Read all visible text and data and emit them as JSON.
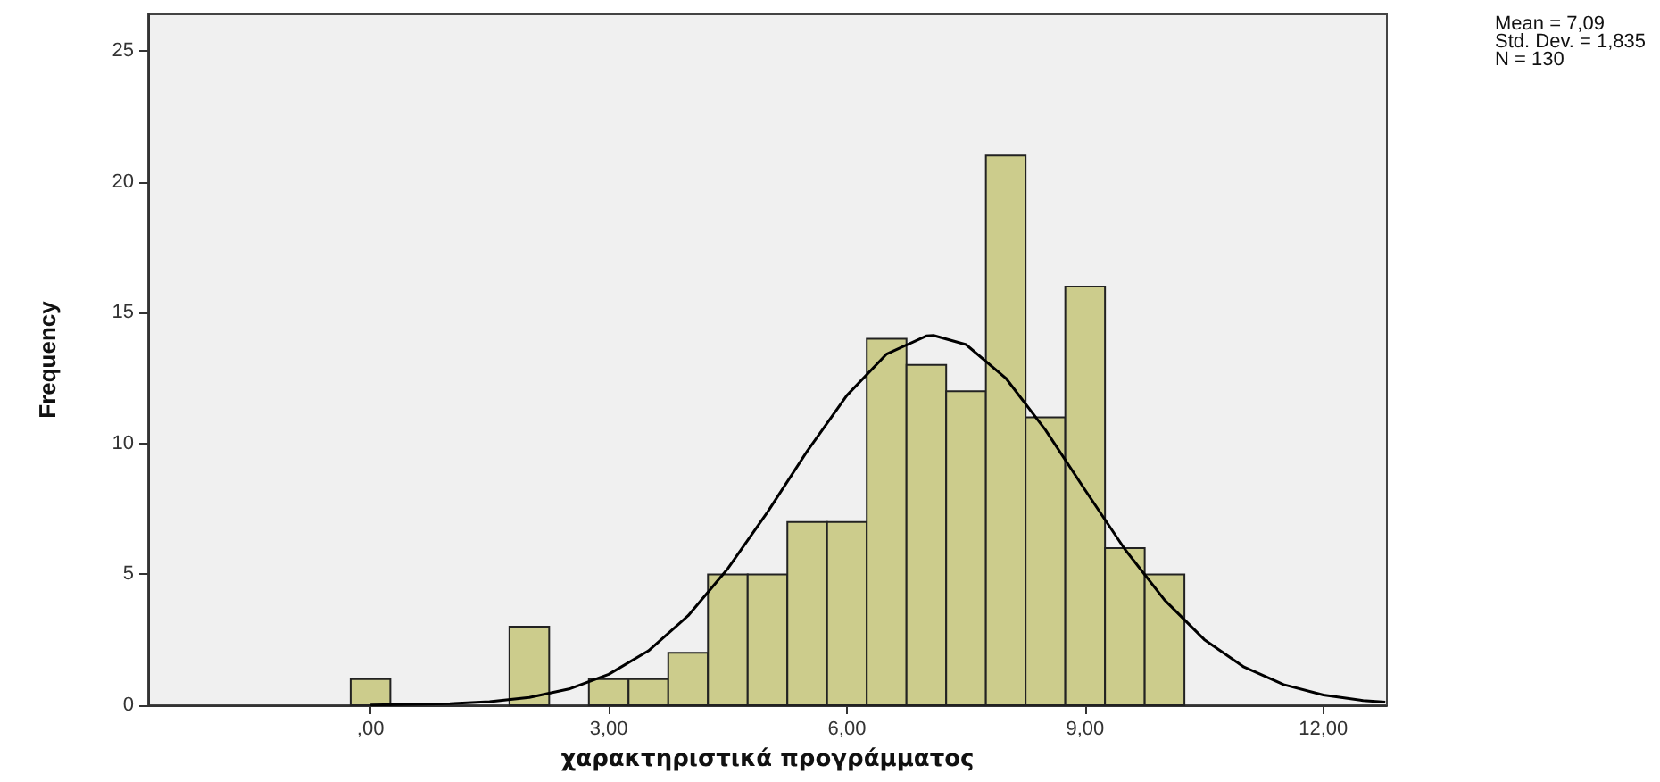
{
  "chart_data": {
    "type": "histogram",
    "xlabel": "χαρακτηριστικά προγράμματος",
    "ylabel": "Frequency",
    "annotations": [
      "Mean = 7,09\nStd. Dev. = 1,835\nN = 130"
    ],
    "xlim": [
      -2.8,
      12.8
    ],
    "ylim": [
      0,
      26.4
    ],
    "xticks": [
      {
        "value": 0,
        "label": ",00"
      },
      {
        "value": 3,
        "label": "3,00"
      },
      {
        "value": 6,
        "label": "6,00"
      },
      {
        "value": 9,
        "label": "9,00"
      },
      {
        "value": 12,
        "label": "12,00"
      }
    ],
    "yticks": [
      0,
      5,
      10,
      15,
      20,
      25
    ],
    "grid": false,
    "marker": "none",
    "series": [
      {
        "color": "#cccc8c",
        "bins": [
          -0.25,
          0.25,
          0.75,
          1.25,
          1.75,
          2.25,
          2.75,
          3.25,
          3.75,
          4.25,
          4.75,
          5.25,
          5.75,
          6.25,
          6.75,
          7.25,
          7.75,
          8.25,
          8.75,
          9.25,
          9.75,
          10.25
        ],
        "values": [
          1,
          0,
          0,
          0,
          3,
          0,
          1,
          1,
          2,
          5,
          5,
          7,
          7,
          14,
          13,
          12,
          21,
          11,
          16,
          6,
          5
        ]
      },
      {
        "type": "line",
        "color": "#000000",
        "x": [
          0,
          1,
          1.5,
          2,
          2.5,
          3,
          3.5,
          4,
          4.5,
          5,
          5.5,
          6,
          6.5,
          7,
          7.09,
          7.5,
          8,
          8.5,
          9,
          9.5,
          10,
          10.5,
          11,
          11.5,
          12,
          12.5,
          12.78
        ],
        "values": [
          0.01,
          0.06,
          0.14,
          0.3,
          0.62,
          1.18,
          2.08,
          3.42,
          5.22,
          7.38,
          9.71,
          11.84,
          13.42,
          14.11,
          14.13,
          13.78,
          12.5,
          10.52,
          8.22,
          5.96,
          4.02,
          2.51,
          1.46,
          0.79,
          0.39,
          0.18,
          0.12
        ]
      }
    ]
  }
}
